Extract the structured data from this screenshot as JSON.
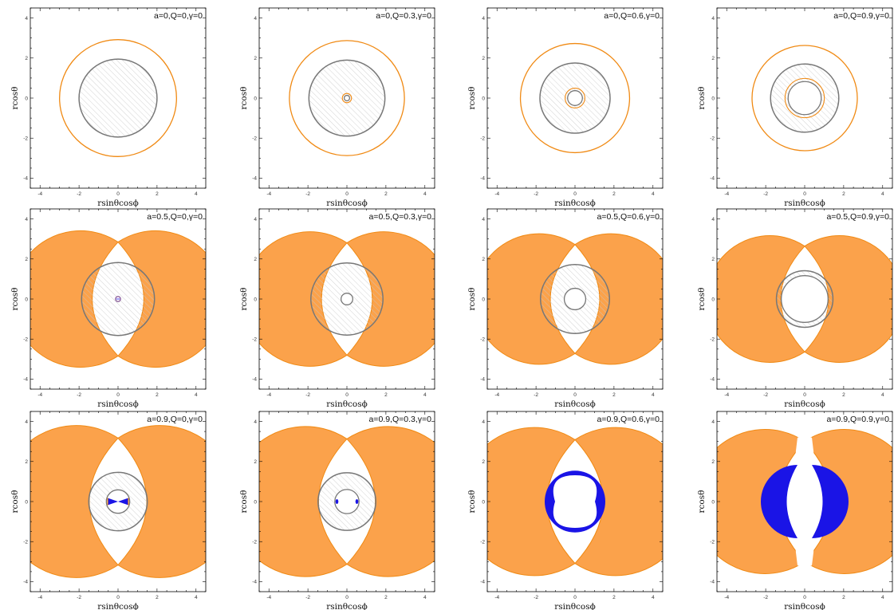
{
  "figure": {
    "xlabel": "rsinθcosϕ",
    "ylabel": "rcosθ"
  },
  "colors": {
    "ergoregion": "#fba24b",
    "ergoregion_edge": "#f08a14",
    "horizon": "#777777",
    "hatch": "#c8c8c8",
    "negative_energy": "#1a14e6",
    "frame": "#000000"
  },
  "chart_data": [
    {
      "type": "region-plot",
      "title": "a=0,Q=0,γ=0",
      "a": 0,
      "Q": 0,
      "gamma": 0,
      "xlim": [
        -4.5,
        4.5
      ],
      "ylim": [
        -4.5,
        4.5
      ],
      "xticks": [
        -4,
        -2,
        0,
        2,
        4
      ],
      "yticks": [
        -4,
        -2,
        0,
        2,
        4
      ],
      "r_ergo": 3.0,
      "r_outer": 2.0,
      "r_inner": 0,
      "ergo_style": "curve",
      "negative_energy_region": false
    },
    {
      "type": "region-plot",
      "title": "a=0,Q=0.3,γ=0",
      "a": 0,
      "Q": 0.3,
      "gamma": 0,
      "xlim": [
        -4.5,
        4.5
      ],
      "ylim": [
        -4.5,
        4.5
      ],
      "xticks": [
        -4,
        -2,
        0,
        2,
        4
      ],
      "yticks": [
        -4,
        -2,
        0,
        2,
        4
      ],
      "r_ergo": 2.95,
      "r_outer": 1.95,
      "r_inner": 0.14,
      "ergo_style": "curve",
      "negative_energy_region": false
    },
    {
      "type": "region-plot",
      "title": "a=0,Q=0.6,γ=0",
      "a": 0,
      "Q": 0.6,
      "gamma": 0,
      "xlim": [
        -4.5,
        4.5
      ],
      "ylim": [
        -4.5,
        4.5
      ],
      "xticks": [
        -4,
        -2,
        0,
        2,
        4
      ],
      "yticks": [
        -4,
        -2,
        0,
        2,
        4
      ],
      "r_ergo": 2.8,
      "r_outer": 1.8,
      "r_inner": 0.38,
      "ergo_style": "curve",
      "negative_energy_region": false
    },
    {
      "type": "region-plot",
      "title": "a=0,Q=0.9,γ=0",
      "a": 0,
      "Q": 0.9,
      "gamma": 0,
      "xlim": [
        -4.5,
        4.5
      ],
      "ylim": [
        -4.5,
        4.5
      ],
      "xticks": [
        -4,
        -2,
        0,
        2,
        4
      ],
      "yticks": [
        -4,
        -2,
        0,
        2,
        4
      ],
      "r_ergo": 2.7,
      "r_outer": 1.75,
      "r_inner": 0.85,
      "ergo_style": "curve",
      "negative_energy_region": false
    },
    {
      "type": "region-plot",
      "title": "a=0.5,Q=0,γ=0",
      "a": 0.5,
      "Q": 0,
      "gamma": 0,
      "xlim": [
        -4.5,
        4.5
      ],
      "ylim": [
        -4.5,
        4.5
      ],
      "xticks": [
        -4,
        -2,
        0,
        2,
        4
      ],
      "yticks": [
        -4,
        -2,
        0,
        2,
        4
      ],
      "r_ergo": 3.5,
      "r_outer": 1.87,
      "r_inner": 0.13,
      "ergo_style": "filled",
      "negative_energy_region": false
    },
    {
      "type": "region-plot",
      "title": "a=0.5,Q=0.3,γ=0",
      "a": 0.5,
      "Q": 0.3,
      "gamma": 0,
      "xlim": [
        -4.5,
        4.5
      ],
      "ylim": [
        -4.5,
        4.5
      ],
      "xticks": [
        -4,
        -2,
        0,
        2,
        4
      ],
      "yticks": [
        -4,
        -2,
        0,
        2,
        4
      ],
      "r_ergo": 3.45,
      "r_outer": 1.85,
      "r_inner": 0.3,
      "ergo_style": "filled",
      "negative_energy_region": false
    },
    {
      "type": "region-plot",
      "title": "a=0.5,Q=0.6,γ=0",
      "a": 0.5,
      "Q": 0.6,
      "gamma": 0,
      "xlim": [
        -4.5,
        4.5
      ],
      "ylim": [
        -4.5,
        4.5
      ],
      "xticks": [
        -4,
        -2,
        0,
        2,
        4
      ],
      "yticks": [
        -4,
        -2,
        0,
        2,
        4
      ],
      "r_ergo": 3.35,
      "r_outer": 1.77,
      "r_inner": 0.55,
      "ergo_style": "filled",
      "negative_energy_region": false
    },
    {
      "type": "region-plot",
      "title": "a=0.5,Q=0.9,γ=0",
      "a": 0.5,
      "Q": 0.9,
      "gamma": 0,
      "xlim": [
        -4.5,
        4.5
      ],
      "ylim": [
        -4.5,
        4.5
      ],
      "xticks": [
        -4,
        -2,
        0,
        2,
        4
      ],
      "yticks": [
        -4,
        -2,
        0,
        2,
        4
      ],
      "r_ergo": 3.25,
      "r_outer": 1.45,
      "r_inner": 1.2,
      "ergo_style": "filled",
      "negative_energy_region": false
    },
    {
      "type": "region-plot",
      "title": "a=0.9,Q=0,γ=0",
      "a": 0.9,
      "Q": 0,
      "gamma": 0,
      "xlim": [
        -4.5,
        4.5
      ],
      "ylim": [
        -4.5,
        4.5
      ],
      "xticks": [
        -4,
        -2,
        0,
        2,
        4
      ],
      "yticks": [
        -4,
        -2,
        0,
        2,
        4
      ],
      "r_ergo": 3.9,
      "r_outer": 1.5,
      "r_inner": 0.6,
      "ergo_style": "filled",
      "negative_energy_region": true,
      "negative_energy_shape": "bowtie"
    },
    {
      "type": "region-plot",
      "title": "a=0.9,Q=0.3,γ=0",
      "a": 0.9,
      "Q": 0.3,
      "gamma": 0,
      "xlim": [
        -4.5,
        4.5
      ],
      "ylim": [
        -4.5,
        4.5
      ],
      "xticks": [
        -4,
        -2,
        0,
        2,
        4
      ],
      "yticks": [
        -4,
        -2,
        0,
        2,
        4
      ],
      "r_ergo": 3.85,
      "r_outer": 1.48,
      "r_inner": 0.62,
      "ergo_style": "filled",
      "negative_energy_region": true,
      "negative_energy_shape": "dots"
    },
    {
      "type": "region-plot",
      "title": "a=0.9,Q=0.6,γ=0",
      "a": 0.9,
      "Q": 0.6,
      "gamma": 0,
      "xlim": [
        -4.5,
        4.5
      ],
      "ylim": [
        -4.5,
        4.5
      ],
      "xticks": [
        -4,
        -2,
        0,
        2,
        4
      ],
      "yticks": [
        -4,
        -2,
        0,
        2,
        4
      ],
      "r_ergo": 3.8,
      "r_outer": 0,
      "r_inner": 0,
      "ergo_style": "filled",
      "negative_energy_region": true,
      "negative_energy_shape": "ring"
    },
    {
      "type": "region-plot",
      "title": "a=0.9,Q=0.9,γ=0",
      "a": 0.9,
      "Q": 0.9,
      "gamma": 0,
      "xlim": [
        -4.5,
        4.5
      ],
      "ylim": [
        -4.5,
        4.5
      ],
      "xticks": [
        -4,
        -2,
        0,
        2,
        4
      ],
      "yticks": [
        -4,
        -2,
        0,
        2,
        4
      ],
      "r_ergo": 3.7,
      "r_outer": 0,
      "r_inner": 0,
      "ergo_style": "filled",
      "negative_energy_region": true,
      "negative_energy_shape": "crescents"
    }
  ]
}
